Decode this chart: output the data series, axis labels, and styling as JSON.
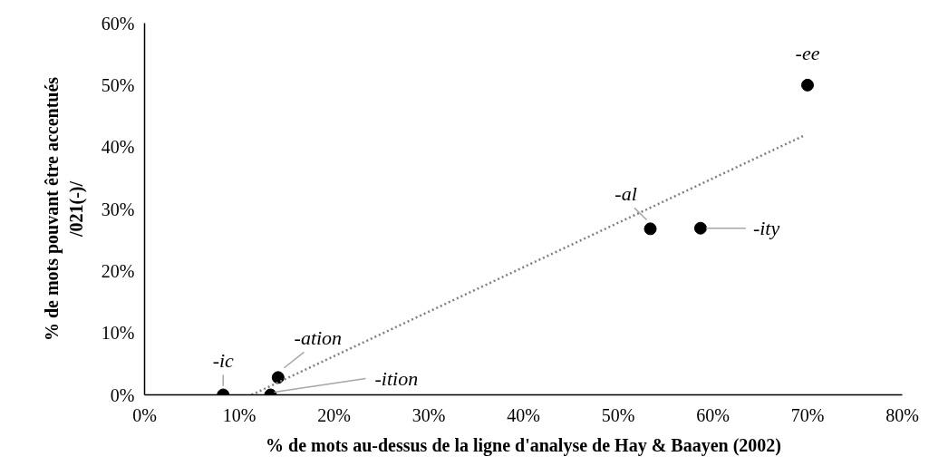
{
  "chart_data": {
    "type": "scatter",
    "xlabel": "% de mots au-dessus de la ligne d'analyse de Hay & Baayen (2002)",
    "ylabel": "% de mots pouvant être accentués\n/021(-)/",
    "xlim": [
      0,
      80
    ],
    "xticks": [
      {
        "value": 0,
        "label": "0%"
      },
      {
        "value": 10,
        "label": "10%"
      },
      {
        "value": 20,
        "label": "20%"
      },
      {
        "value": 30,
        "label": "30%"
      },
      {
        "value": 40,
        "label": "40%"
      },
      {
        "value": 50,
        "label": "50%"
      },
      {
        "value": 60,
        "label": "60%"
      },
      {
        "value": 70,
        "label": "70%"
      },
      {
        "value": 80,
        "label": "80%"
      }
    ],
    "ylim": [
      0,
      60
    ],
    "yticks": [
      {
        "value": 0,
        "label": "0%"
      },
      {
        "value": 10,
        "label": "10%"
      },
      {
        "value": 20,
        "label": "20%"
      },
      {
        "value": 30,
        "label": "30%"
      },
      {
        "value": 40,
        "label": "40%"
      },
      {
        "value": 50,
        "label": "50%"
      },
      {
        "value": 60,
        "label": "60%"
      }
    ],
    "grid": false,
    "marker": "circle",
    "series": [
      {
        "color": "#000000",
        "x": [
          8.3,
          13.3,
          14.1,
          53.4,
          58.7,
          70.0
        ],
        "values": [
          0,
          0,
          2.8,
          26.8,
          26.9,
          50
        ]
      },
      {
        "type": "line",
        "color": "#808080",
        "line_style": "dotted",
        "marker": "none",
        "x": [
          11.3,
          69.7
        ],
        "values": [
          0,
          41.9
        ]
      }
    ],
    "annotations": [
      {
        "text": "-ic",
        "x": 8.3,
        "y": 0
      },
      {
        "text": "-ition",
        "x": 13.3,
        "y": 0
      },
      {
        "text": "-ation",
        "x": 14.1,
        "y": 2.8
      },
      {
        "text": "-al",
        "x": 53.4,
        "y": 26.8
      },
      {
        "text": "-ity",
        "x": 58.7,
        "y": 26.9
      },
      {
        "text": "-ee",
        "x": 70.0,
        "y": 50
      }
    ]
  }
}
